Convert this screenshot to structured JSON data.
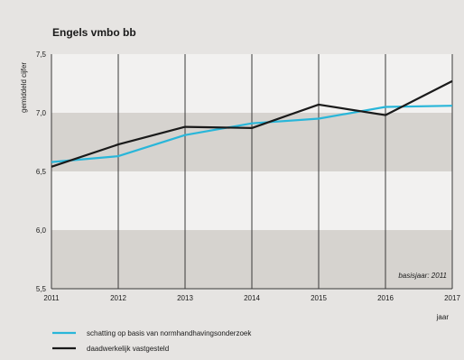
{
  "chart_data": {
    "type": "line",
    "title": "Engels vmbo bb",
    "xlabel": "jaar",
    "ylabel": "gemiddeld cijfer",
    "x": [
      "2011",
      "2012",
      "2013",
      "2014",
      "2015",
      "2016",
      "2017"
    ],
    "ylim": [
      5.5,
      7.5
    ],
    "yticks": [
      "5,5",
      "6,0",
      "6,5",
      "7,0",
      "7,5"
    ],
    "bands": [
      [
        5.5,
        6.0
      ],
      [
        6.5,
        7.0
      ]
    ],
    "annotation": "basisjaar: 2011",
    "series": [
      {
        "name": "schatting op basis van normhandhavingsonderzoek",
        "color": "#29b6d9",
        "values": [
          6.58,
          6.63,
          6.81,
          6.91,
          6.95,
          7.05,
          7.06
        ]
      },
      {
        "name": "daadwerkelijk vastgesteld",
        "color": "#1a1a1a",
        "values": [
          6.54,
          6.73,
          6.88,
          6.87,
          7.07,
          6.98,
          7.27
        ]
      }
    ],
    "legend_position": "bottom-left",
    "colors": {
      "background": "#e6e4e2",
      "plot": "#f2f1f0",
      "band": "#d6d3cf"
    }
  }
}
